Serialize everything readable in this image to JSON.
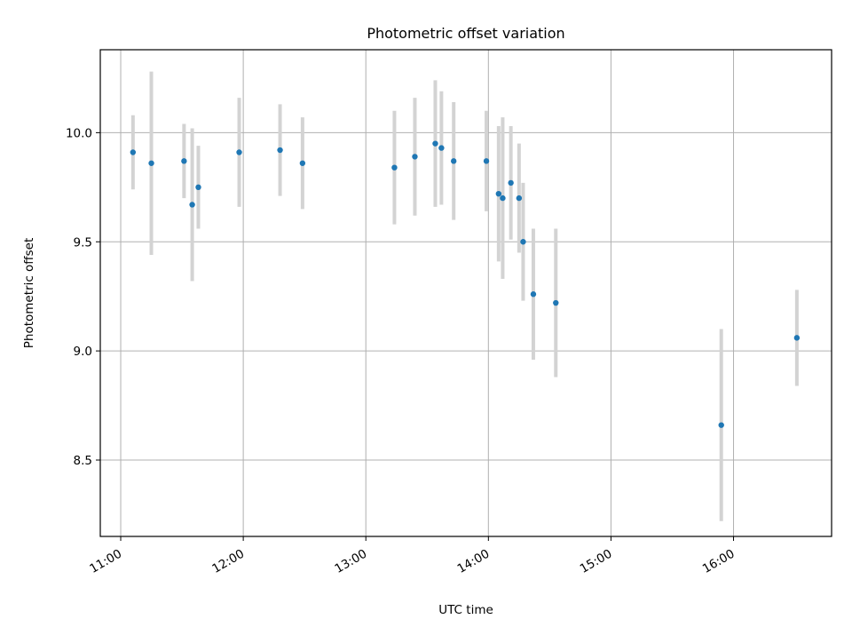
{
  "chart_data": {
    "type": "scatter",
    "title": "Photometric offset variation",
    "xlabel": "UTC time",
    "ylabel": "Photometric offset",
    "x_ticks": [
      "11:00",
      "12:00",
      "13:00",
      "14:00",
      "15:00",
      "16:00"
    ],
    "y_ticks": [
      "8.5",
      "9.0",
      "9.5",
      "10.0"
    ],
    "xlim": [
      "10:50",
      "16:48"
    ],
    "ylim": [
      8.15,
      10.38
    ],
    "grid": true,
    "colors": {
      "marker": "#1f77b4",
      "errorbar": "#d3d3d3",
      "grid": "#b0b0b0"
    },
    "points": [
      {
        "t": "11:06",
        "y": 9.91,
        "err": 0.17
      },
      {
        "t": "11:15",
        "y": 9.86,
        "err": 0.42
      },
      {
        "t": "11:31",
        "y": 9.87,
        "err": 0.17
      },
      {
        "t": "11:35",
        "y": 9.67,
        "err": 0.35
      },
      {
        "t": "11:38",
        "y": 9.75,
        "err": 0.19
      },
      {
        "t": "11:58",
        "y": 9.91,
        "err": 0.25
      },
      {
        "t": "12:18",
        "y": 9.92,
        "err": 0.21
      },
      {
        "t": "12:29",
        "y": 9.86,
        "err": 0.21
      },
      {
        "t": "13:14",
        "y": 9.84,
        "err": 0.26
      },
      {
        "t": "13:24",
        "y": 9.89,
        "err": 0.27
      },
      {
        "t": "13:34",
        "y": 9.95,
        "err": 0.29
      },
      {
        "t": "13:37",
        "y": 9.93,
        "err": 0.26
      },
      {
        "t": "13:43",
        "y": 9.87,
        "err": 0.27
      },
      {
        "t": "13:59",
        "y": 9.87,
        "err": 0.23
      },
      {
        "t": "14:05",
        "y": 9.72,
        "err": 0.31
      },
      {
        "t": "14:07",
        "y": 9.7,
        "err": 0.37
      },
      {
        "t": "14:11",
        "y": 9.77,
        "err": 0.26
      },
      {
        "t": "14:15",
        "y": 9.7,
        "err": 0.25
      },
      {
        "t": "14:17",
        "y": 9.5,
        "err": 0.27
      },
      {
        "t": "14:22",
        "y": 9.26,
        "err": 0.3
      },
      {
        "t": "14:33",
        "y": 9.22,
        "err": 0.34
      },
      {
        "t": "15:54",
        "y": 8.66,
        "err": 0.44
      },
      {
        "t": "16:31",
        "y": 9.06,
        "err": 0.22
      }
    ]
  }
}
